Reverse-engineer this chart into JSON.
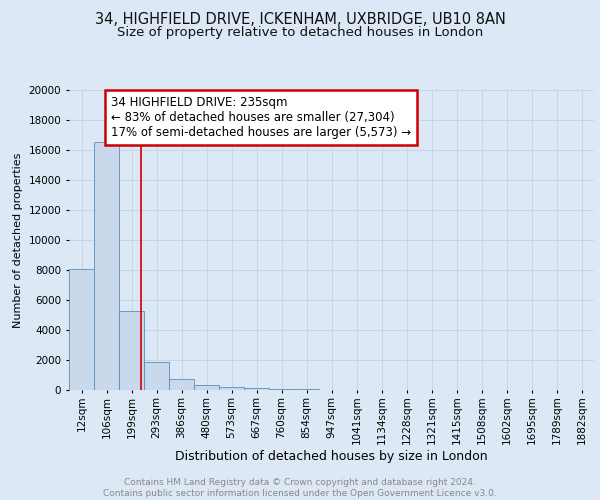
{
  "title": "34, HIGHFIELD DRIVE, ICKENHAM, UXBRIDGE, UB10 8AN",
  "subtitle": "Size of property relative to detached houses in London",
  "xlabel": "Distribution of detached houses by size in London",
  "ylabel": "Number of detached properties",
  "bar_labels": [
    "12sqm",
    "106sqm",
    "199sqm",
    "293sqm",
    "386sqm",
    "480sqm",
    "573sqm",
    "667sqm",
    "760sqm",
    "854sqm",
    "947sqm",
    "1041sqm",
    "1134sqm",
    "1228sqm",
    "1321sqm",
    "1415sqm",
    "1508sqm",
    "1602sqm",
    "1695sqm",
    "1789sqm",
    "1882sqm"
  ],
  "bar_values": [
    8100,
    16500,
    5300,
    1850,
    750,
    350,
    200,
    150,
    100,
    50,
    0,
    0,
    0,
    0,
    0,
    0,
    0,
    0,
    0,
    0,
    0
  ],
  "bar_color": "#c9d9eb",
  "bar_edge_color": "#5b8db8",
  "grid_color": "#c5d5e8",
  "background_color": "#dce8f5",
  "figure_background": "#dce8f5",
  "annotation_text_line1": "34 HIGHFIELD DRIVE: 235sqm",
  "annotation_text_line2": "← 83% of detached houses are smaller (27,304)",
  "annotation_text_line3": "17% of semi-detached houses are larger (5,573) →",
  "annotation_box_color": "#ffffff",
  "annotation_box_edge_color": "#cc0000",
  "ylim": [
    0,
    20000
  ],
  "yticks": [
    0,
    2000,
    4000,
    6000,
    8000,
    10000,
    12000,
    14000,
    16000,
    18000,
    20000
  ],
  "footer_text": "Contains HM Land Registry data © Crown copyright and database right 2024.\nContains public sector information licensed under the Open Government Licence v3.0.",
  "title_fontsize": 10.5,
  "subtitle_fontsize": 9.5,
  "xlabel_fontsize": 9,
  "ylabel_fontsize": 8,
  "tick_fontsize": 7.5,
  "annotation_fontsize": 8.5,
  "footer_fontsize": 6.5
}
